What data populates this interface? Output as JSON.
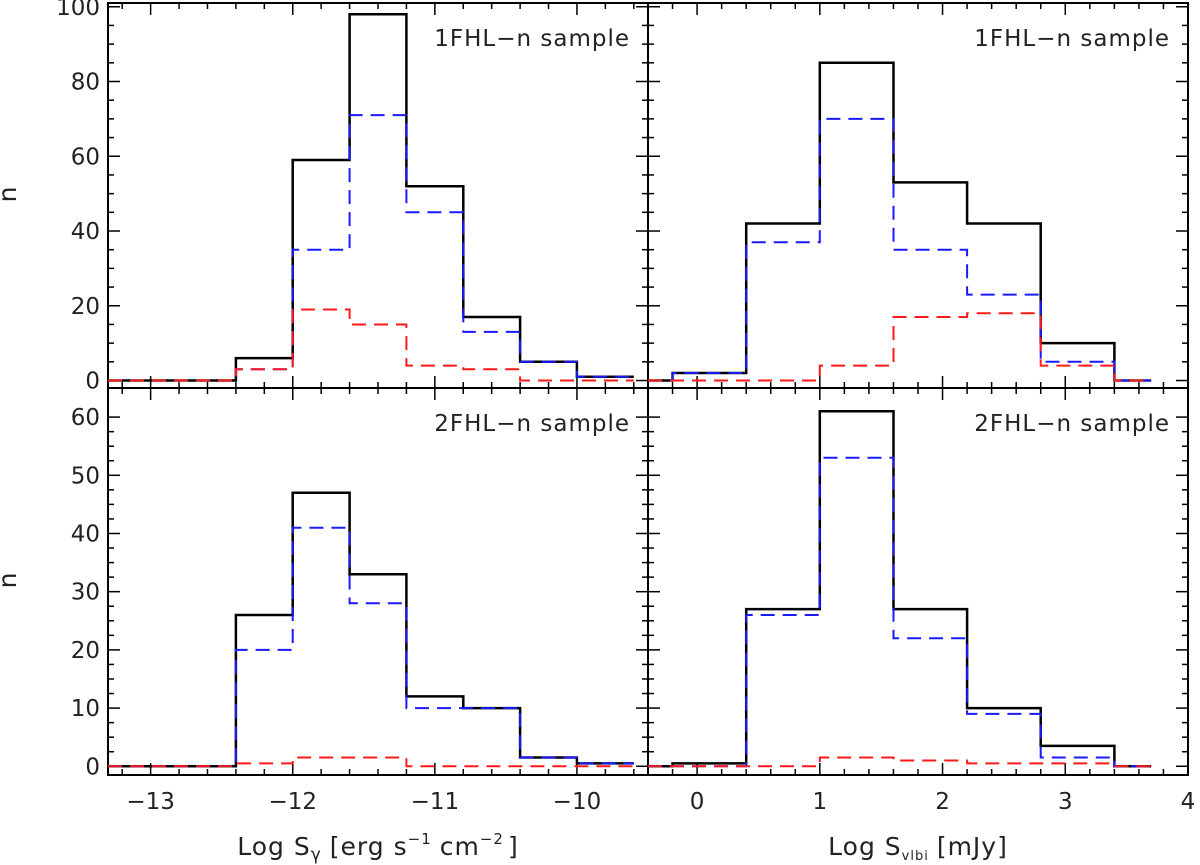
{
  "chart_data": [
    {
      "id": "top-left",
      "type": "histogram",
      "title": "1FHL−n sample",
      "ylabel": "n",
      "xlabel": "",
      "xlim": [
        -13.3,
        -9.5
      ],
      "ylim": [
        -2,
        101
      ],
      "yticks": [
        0,
        20,
        40,
        60,
        80,
        100
      ],
      "ytick_labels": [
        "0",
        "20",
        "40",
        "60",
        "80",
        "100"
      ],
      "series": [
        {
          "name": "all",
          "color": "#000000",
          "dashed": false,
          "edges": [
            -13.3,
            -12.4,
            -12.0,
            -11.6,
            -11.2,
            -10.8,
            -10.4,
            -10.0,
            -9.6
          ],
          "values": [
            0,
            6,
            59,
            98,
            52,
            17,
            5,
            1
          ]
        },
        {
          "name": "blue",
          "color": "#1a1aff",
          "dashed": true,
          "edges": [
            -13.3,
            -12.4,
            -12.0,
            -11.6,
            -11.2,
            -10.8,
            -10.4,
            -10.0,
            -9.6
          ],
          "values": [
            0,
            3,
            35,
            71,
            45,
            13,
            5,
            1
          ]
        },
        {
          "name": "red",
          "color": "#ff1a1a",
          "dashed": true,
          "edges": [
            -13.3,
            -12.4,
            -12.0,
            -11.6,
            -11.2,
            -10.8,
            -10.4,
            -10.0,
            -9.6
          ],
          "values": [
            0,
            3,
            19,
            15,
            4,
            3,
            0,
            0
          ]
        }
      ]
    },
    {
      "id": "top-right",
      "type": "histogram",
      "title": "1FHL−n sample",
      "ylabel": "",
      "xlabel": "",
      "xlim": [
        -0.4,
        4.0
      ],
      "ylim": [
        -2,
        101
      ],
      "yticks": [
        0,
        20,
        40,
        60,
        80,
        100
      ],
      "ytick_labels": [],
      "series": [
        {
          "name": "all",
          "color": "#000000",
          "dashed": false,
          "edges": [
            -0.4,
            -0.2,
            0.4,
            1.0,
            1.6,
            2.2,
            2.8,
            3.4,
            3.7
          ],
          "values": [
            0,
            2,
            42,
            85,
            53,
            42,
            10,
            0
          ]
        },
        {
          "name": "blue",
          "color": "#1a1aff",
          "dashed": true,
          "edges": [
            -0.4,
            -0.2,
            0.4,
            1.0,
            1.6,
            2.2,
            2.8,
            3.4,
            3.7
          ],
          "values": [
            0,
            2,
            37,
            70,
            35,
            23,
            5,
            0
          ]
        },
        {
          "name": "red",
          "color": "#ff1a1a",
          "dashed": true,
          "edges": [
            -0.4,
            -0.2,
            0.4,
            1.0,
            1.6,
            2.2,
            2.8,
            3.4,
            3.7
          ],
          "values": [
            0,
            0,
            0,
            4,
            17,
            18,
            4,
            0
          ]
        }
      ]
    },
    {
      "id": "bottom-left",
      "type": "histogram",
      "title": "2FHL−n sample",
      "ylabel": "n",
      "xlabel": "Log S",
      "xlabel_sub": "γ",
      "xlabel_unit": "[erg s",
      "xlim": [
        -13.3,
        -9.5
      ],
      "ylim": [
        -1.5,
        65
      ],
      "yticks": [
        0,
        10,
        20,
        30,
        40,
        50,
        60
      ],
      "ytick_labels": [
        "0",
        "10",
        "20",
        "30",
        "40",
        "50",
        "60"
      ],
      "xticks": [
        -13,
        -12,
        -11,
        -10
      ],
      "xtick_labels": [
        "−13",
        "−12",
        "−11",
        "−10"
      ],
      "series": [
        {
          "name": "all",
          "color": "#000000",
          "dashed": false,
          "edges": [
            -13.3,
            -12.4,
            -12.0,
            -11.6,
            -11.2,
            -10.8,
            -10.4,
            -10.0,
            -9.6
          ],
          "values": [
            0,
            26,
            47,
            33,
            12,
            10,
            1.5,
            0.5
          ]
        },
        {
          "name": "blue",
          "color": "#1a1aff",
          "dashed": true,
          "edges": [
            -13.3,
            -12.4,
            -12.0,
            -11.6,
            -11.2,
            -10.8,
            -10.4,
            -10.0,
            -9.6
          ],
          "values": [
            0,
            20,
            41,
            28,
            10,
            10,
            1.5,
            0.5
          ]
        },
        {
          "name": "red",
          "color": "#ff1a1a",
          "dashed": true,
          "edges": [
            -13.3,
            -12.4,
            -12.0,
            -11.6,
            -11.2,
            -10.8,
            -10.4,
            -10.0,
            -9.6
          ],
          "values": [
            0,
            0.5,
            1.5,
            1.5,
            0,
            0,
            0,
            0
          ]
        }
      ]
    },
    {
      "id": "bottom-right",
      "type": "histogram",
      "title": "2FHL−n sample",
      "ylabel": "",
      "xlabel": "Log S",
      "xlabel_sub": "vlbi",
      "xlabel_unit": "[mJy]",
      "xlim": [
        -0.4,
        4.0
      ],
      "ylim": [
        -1.5,
        65
      ],
      "yticks": [
        0,
        10,
        20,
        30,
        40,
        50,
        60
      ],
      "ytick_labels": [],
      "xticks": [
        0,
        1,
        2,
        3,
        4
      ],
      "xtick_labels": [
        "0",
        "1",
        "2",
        "3",
        "4"
      ],
      "series": [
        {
          "name": "all",
          "color": "#000000",
          "dashed": false,
          "edges": [
            -0.4,
            -0.2,
            0.4,
            1.0,
            1.6,
            2.2,
            2.8,
            3.4,
            3.7
          ],
          "values": [
            0,
            0.5,
            27,
            61,
            27,
            10,
            3.5,
            0
          ]
        },
        {
          "name": "blue",
          "color": "#1a1aff",
          "dashed": true,
          "edges": [
            -0.4,
            -0.2,
            0.4,
            1.0,
            1.6,
            2.2,
            2.8,
            3.4,
            3.7
          ],
          "values": [
            0,
            0,
            26,
            53,
            22,
            9,
            1.5,
            0
          ]
        },
        {
          "name": "red",
          "color": "#ff1a1a",
          "dashed": true,
          "edges": [
            -0.4,
            -0.2,
            0.4,
            1.0,
            1.6,
            2.2,
            2.8,
            3.4,
            3.7
          ],
          "values": [
            0,
            0,
            0,
            1.5,
            1,
            0.5,
            0.5,
            0
          ]
        }
      ]
    }
  ],
  "labels": {
    "ylabel_top": "n",
    "ylabel_bottom": "n",
    "xlabel_left_main": "Log S",
    "xlabel_left_sub": "γ",
    "xlabel_left_u1": "[erg s",
    "xlabel_left_sup1": "−1",
    "xlabel_left_u2": "cm",
    "xlabel_left_sup2": "−2",
    "xlabel_left_u3": "]",
    "xlabel_right_main": "Log S",
    "xlabel_right_sub": "vlbi",
    "xlabel_right_unit": "[mJy]"
  }
}
